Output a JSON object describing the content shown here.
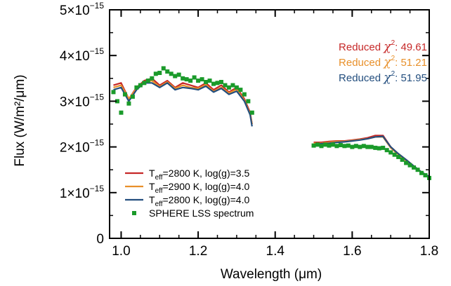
{
  "chart_data": {
    "type": "line",
    "title": "",
    "xlabel": "Wavelength (μm)",
    "ylabel": "Flux (W/m²/μm)",
    "xlim": [
      0.97,
      1.8
    ],
    "ylim": [
      0,
      5e-15
    ],
    "grid": false,
    "legend_position": "bottom-left",
    "x_ticks": [
      {
        "value": 1.0,
        "label": "1.0"
      },
      {
        "value": 1.2,
        "label": "1.2"
      },
      {
        "value": 1.4,
        "label": "1.4"
      },
      {
        "value": 1.6,
        "label": "1.6"
      },
      {
        "value": 1.8,
        "label": "1.8"
      }
    ],
    "y_ticks": [
      {
        "value": 0,
        "mantissa": "0",
        "exponent": ""
      },
      {
        "value": 1e-15,
        "mantissa": "1×10",
        "exponent": "−15"
      },
      {
        "value": 2e-15,
        "mantissa": "2×10",
        "exponent": "−15"
      },
      {
        "value": 3e-15,
        "mantissa": "3×10",
        "exponent": "−15"
      },
      {
        "value": 4e-15,
        "mantissa": "4×10",
        "exponent": "−15"
      },
      {
        "value": 5e-15,
        "mantissa": "5×10",
        "exponent": "−15"
      }
    ],
    "annotations": [
      {
        "prefix": "Reduced ",
        "symbol": "χ",
        "power": "2",
        "suffix": ": 49.61",
        "color": "#c62828"
      },
      {
        "prefix": "Reduced ",
        "symbol": "χ",
        "power": "2",
        "suffix": ": 51.21",
        "color": "#e8902a"
      },
      {
        "prefix": "Reduced ",
        "symbol": "χ",
        "power": "2",
        "suffix": ": 51.95",
        "color": "#234e7e"
      }
    ],
    "series": [
      {
        "name": "Teff=2800 K, log(g)=3.5",
        "legend": {
          "T": "T",
          "sub": "eff",
          "rest": "=2800 K, log(g)=3.5"
        },
        "kind": "line",
        "color": "#c62828",
        "segments": [
          {
            "x": [
              0.98,
              1.0,
              1.02,
              1.04,
              1.06,
              1.08,
              1.1,
              1.12,
              1.14,
              1.16,
              1.18,
              1.2,
              1.22,
              1.24,
              1.26,
              1.28,
              1.3,
              1.32,
              1.335,
              1.34
            ],
            "y": [
              3.35e-15,
              3.4e-15,
              3.05e-15,
              3.3e-15,
              3.45e-15,
              3.5e-15,
              3.35e-15,
              3.45e-15,
              3.3e-15,
              3.4e-15,
              3.35e-15,
              3.3e-15,
              3.4e-15,
              3.25e-15,
              3.35e-15,
              3.2e-15,
              3.3e-15,
              3.05e-15,
              2.75e-15,
              2.5e-15
            ]
          },
          {
            "x": [
              1.5,
              1.52,
              1.54,
              1.56,
              1.58,
              1.6,
              1.62,
              1.64,
              1.66,
              1.68,
              1.7,
              1.72,
              1.74,
              1.76,
              1.78,
              1.8
            ],
            "y": [
              2.1e-15,
              2.1e-15,
              2.12e-15,
              2.13e-15,
              2.13e-15,
              2.15e-15,
              2.17e-15,
              2.2e-15,
              2.25e-15,
              2.25e-15,
              2e-15,
              1.85e-15,
              1.72e-15,
              1.58e-15,
              1.45e-15,
              1.35e-15
            ]
          }
        ]
      },
      {
        "name": "Teff=2900 K, log(g)=4.0",
        "legend": {
          "T": "T",
          "sub": "eff",
          "rest": "=2900 K, log(g)=4.0"
        },
        "kind": "line",
        "color": "#e8902a",
        "segments": [
          {
            "x": [
              0.98,
              1.0,
              1.02,
              1.04,
              1.06,
              1.08,
              1.1,
              1.12,
              1.14,
              1.16,
              1.18,
              1.2,
              1.22,
              1.24,
              1.26,
              1.28,
              1.3,
              1.32,
              1.335,
              1.34
            ],
            "y": [
              3.3e-15,
              3.35e-15,
              3.05e-15,
              3.28e-15,
              3.42e-15,
              3.45e-15,
              3.32e-15,
              3.42e-15,
              3.28e-15,
              3.35e-15,
              3.3e-15,
              3.28e-15,
              3.36e-15,
              3.22e-15,
              3.3e-15,
              3.18e-15,
              3.26e-15,
              3.02e-15,
              2.72e-15,
              2.5e-15
            ]
          },
          {
            "x": [
              1.5,
              1.52,
              1.54,
              1.56,
              1.58,
              1.6,
              1.62,
              1.64,
              1.66,
              1.68,
              1.7,
              1.72,
              1.74,
              1.76,
              1.78,
              1.8
            ],
            "y": [
              2.08e-15,
              2.08e-15,
              2.1e-15,
              2.12e-15,
              2.12e-15,
              2.14e-15,
              2.16e-15,
              2.18e-15,
              2.22e-15,
              2.22e-15,
              1.98e-15,
              1.83e-15,
              1.7e-15,
              1.56e-15,
              1.44e-15,
              1.34e-15
            ]
          }
        ]
      },
      {
        "name": "Teff=2800 K, log(g)=4.0",
        "legend": {
          "T": "T",
          "sub": "eff",
          "rest": "=2800 K, log(g)=4.0"
        },
        "kind": "line",
        "color": "#234e7e",
        "segments": [
          {
            "x": [
              0.98,
              1.0,
              1.02,
              1.04,
              1.06,
              1.08,
              1.1,
              1.12,
              1.14,
              1.16,
              1.18,
              1.2,
              1.22,
              1.24,
              1.26,
              1.28,
              1.3,
              1.32,
              1.335,
              1.34
            ],
            "y": [
              3.25e-15,
              3.3e-15,
              3e-15,
              3.25e-15,
              3.4e-15,
              3.4e-15,
              3.3e-15,
              3.4e-15,
              3.25e-15,
              3.3e-15,
              3.28e-15,
              3.25e-15,
              3.33e-15,
              3.2e-15,
              3.28e-15,
              3.15e-15,
              3.22e-15,
              3e-15,
              2.7e-15,
              2.45e-15
            ]
          },
          {
            "x": [
              1.5,
              1.52,
              1.54,
              1.56,
              1.58,
              1.6,
              1.62,
              1.64,
              1.66,
              1.68,
              1.7,
              1.72,
              1.74,
              1.76,
              1.78,
              1.8
            ],
            "y": [
              2.05e-15,
              2.07e-15,
              2.08e-15,
              2.1e-15,
              2.11e-15,
              2.13e-15,
              2.15e-15,
              2.18e-15,
              2.22e-15,
              2.23e-15,
              2e-15,
              1.85e-15,
              1.72e-15,
              1.58e-15,
              1.45e-15,
              1.35e-15
            ]
          }
        ]
      },
      {
        "name": "SPHERE LSS spectrum",
        "legend": {
          "T": "",
          "sub": "",
          "rest": "SPHERE LSS spectrum"
        },
        "kind": "marker",
        "color": "#1a9a2a",
        "segments": [
          {
            "x": [
              0.98,
              0.99,
              1.0,
              1.01,
              1.02,
              1.03,
              1.04,
              1.05,
              1.06,
              1.07,
              1.08,
              1.09,
              1.1,
              1.11,
              1.12,
              1.13,
              1.14,
              1.15,
              1.16,
              1.17,
              1.18,
              1.19,
              1.2,
              1.21,
              1.22,
              1.23,
              1.24,
              1.25,
              1.26,
              1.27,
              1.28,
              1.29,
              1.3,
              1.31,
              1.32,
              1.33,
              1.34
            ],
            "y": [
              3.2e-15,
              3e-15,
              2.75e-15,
              3.15e-15,
              2.95e-15,
              3.1e-15,
              3.3e-15,
              3.35e-15,
              3.4e-15,
              3.45e-15,
              3.5e-15,
              3.6e-15,
              3.62e-15,
              3.72e-15,
              3.65e-15,
              3.6e-15,
              3.55e-15,
              3.58e-15,
              3.5e-15,
              3.48e-15,
              3.45e-15,
              3.52e-15,
              3.45e-15,
              3.48e-15,
              3.42e-15,
              3.45e-15,
              3.38e-15,
              3.4e-15,
              3.42e-15,
              3.35e-15,
              3.3e-15,
              3.35e-15,
              3.3e-15,
              3.25e-15,
              3.15e-15,
              3e-15,
              2.75e-15
            ]
          },
          {
            "x": [
              1.5,
              1.51,
              1.52,
              1.53,
              1.54,
              1.55,
              1.56,
              1.57,
              1.58,
              1.59,
              1.6,
              1.61,
              1.62,
              1.63,
              1.64,
              1.65,
              1.66,
              1.67,
              1.68,
              1.69,
              1.7,
              1.71,
              1.72,
              1.73,
              1.74,
              1.75,
              1.76,
              1.77,
              1.78,
              1.79,
              1.8
            ],
            "y": [
              2.03e-15,
              2.05e-15,
              2.02e-15,
              2.05e-15,
              2.03e-15,
              2.05e-15,
              2.02e-15,
              2.04e-15,
              2.02e-15,
              2.03e-15,
              2e-15,
              2.02e-15,
              2e-15,
              2.02e-15,
              2e-15,
              2e-15,
              1.98e-15,
              1.97e-15,
              1.98e-15,
              1.93e-15,
              1.88e-15,
              1.83e-15,
              1.78e-15,
              1.72e-15,
              1.65e-15,
              1.6e-15,
              1.55e-15,
              1.5e-15,
              1.43e-15,
              1.38e-15,
              1.32e-15
            ]
          }
        ]
      }
    ]
  }
}
